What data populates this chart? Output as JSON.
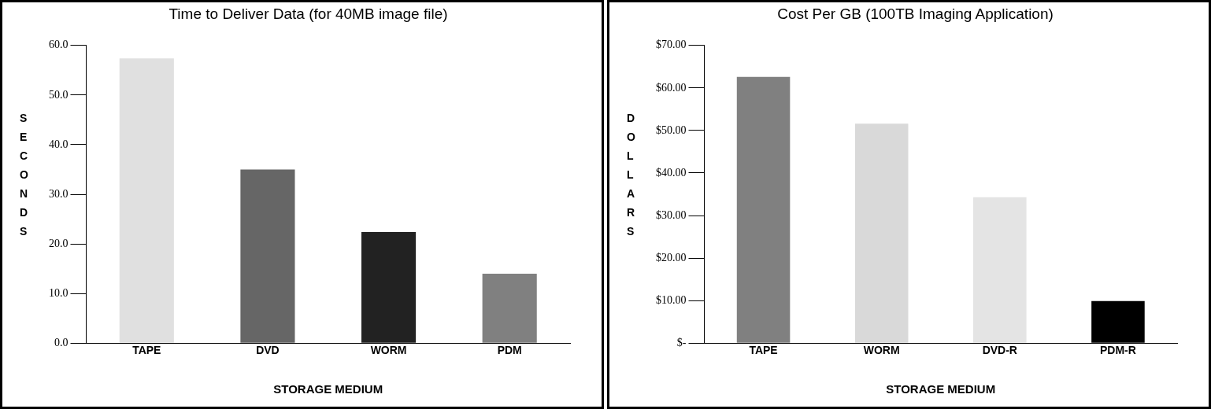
{
  "chart_data": [
    {
      "type": "bar",
      "title": "Time to Deliver Data (for 40MB image file)",
      "xlabel": "STORAGE MEDIUM",
      "ylabel": "SECONDS",
      "categories": [
        "TAPE",
        "DVD",
        "WORM",
        "PDM"
      ],
      "values": [
        57.4,
        35.0,
        22.4,
        14.0
      ],
      "colors": [
        "#e0e0e0",
        "#666666",
        "#222222",
        "#808080"
      ],
      "ylim": [
        0,
        60
      ],
      "yticks": [
        {
          "value": 0,
          "label": "0.0"
        },
        {
          "value": 10,
          "label": "10.0"
        },
        {
          "value": 20,
          "label": "20.0"
        },
        {
          "value": 30,
          "label": "30.0"
        },
        {
          "value": 40,
          "label": "40.0"
        },
        {
          "value": 50,
          "label": "50.0"
        },
        {
          "value": 60,
          "label": "60.0"
        }
      ],
      "legend": false
    },
    {
      "type": "bar",
      "title": "Cost Per GB (100TB Imaging Application)",
      "xlabel": "STORAGE MEDIUM",
      "ylabel": "DOLLARS",
      "categories": [
        "TAPE",
        "WORM",
        "DVD-R",
        "PDM-R"
      ],
      "values": [
        62.6,
        51.6,
        34.3,
        9.9
      ],
      "colors": [
        "#808080",
        "#d9d9d9",
        "#e4e4e4",
        "#000000"
      ],
      "ylim": [
        0,
        70
      ],
      "yticks": [
        {
          "value": 0,
          "label": "$-"
        },
        {
          "value": 10,
          "label": "$10.00"
        },
        {
          "value": 20,
          "label": "$20.00"
        },
        {
          "value": 30,
          "label": "$30.00"
        },
        {
          "value": 40,
          "label": "$40.00"
        },
        {
          "value": 50,
          "label": "$50.00"
        },
        {
          "value": 60,
          "label": "$60.00"
        },
        {
          "value": 70,
          "label": "$70.00"
        }
      ],
      "legend": false
    }
  ]
}
